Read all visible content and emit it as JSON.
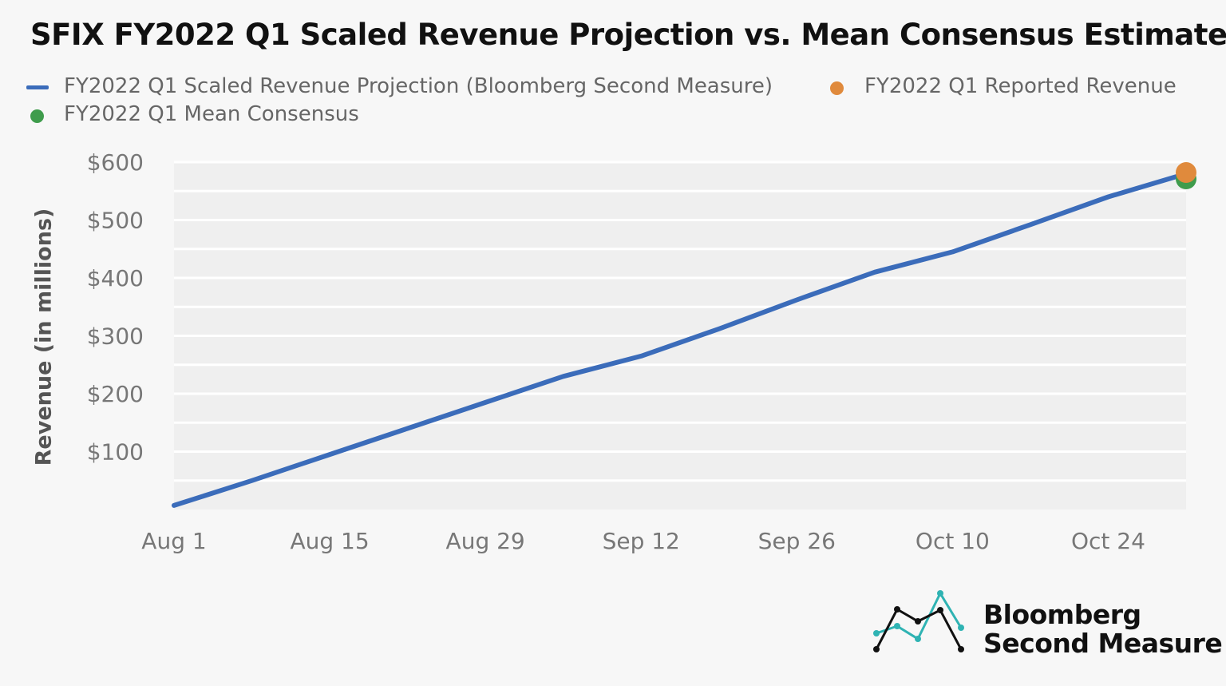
{
  "title": "SFIX FY2022 Q1 Scaled Revenue Projection vs. Mean Consensus Estimate",
  "legend": {
    "projection": "FY2022 Q1 Scaled Revenue Projection (Bloomberg Second Measure)",
    "reported": "FY2022 Q1 Reported Revenue",
    "consensus": "FY2022 Q1 Mean Consensus"
  },
  "colors": {
    "projection": "#3b6cba",
    "reported": "#e08a3c",
    "consensus": "#3f9c4c",
    "plot_bg": "#efefef",
    "gridline": "#ffffff",
    "logo_teal": "#2fb3b3",
    "logo_black": "#111111"
  },
  "logo": {
    "line1": "Bloomberg",
    "line2": "Second Measure"
  },
  "chart_data": {
    "type": "line",
    "ylabel": "Revenue (in millions)",
    "xlabel": "",
    "x_ticks": [
      "Aug 1",
      "Aug 15",
      "Aug 29",
      "Sep 12",
      "Sep 26",
      "Oct 10",
      "Oct 24"
    ],
    "y_ticks": [
      "$100",
      "$200",
      "$300",
      "$400",
      "$500",
      "$600"
    ],
    "ylim": [
      0,
      600
    ],
    "xlim": [
      "Aug 1",
      "Oct 31"
    ],
    "grid": true,
    "legend_position": "top",
    "series": [
      {
        "name": "FY2022 Q1 Scaled Revenue Projection (Bloomberg Second Measure)",
        "x": [
          "Aug 1",
          "Aug 8",
          "Aug 15",
          "Aug 22",
          "Aug 29",
          "Sep 5",
          "Sep 12",
          "Sep 19",
          "Sep 26",
          "Oct 3",
          "Oct 10",
          "Oct 17",
          "Oct 24",
          "Oct 31"
        ],
        "values": [
          7,
          50,
          95,
          140,
          185,
          230,
          265,
          312,
          362,
          410,
          445,
          492,
          540,
          580
        ]
      }
    ],
    "points": [
      {
        "name": "FY2022 Q1 Reported Revenue",
        "x": "Oct 31",
        "value": 582
      },
      {
        "name": "FY2022 Q1 Mean Consensus",
        "x": "Oct 31",
        "value": 571
      }
    ]
  }
}
